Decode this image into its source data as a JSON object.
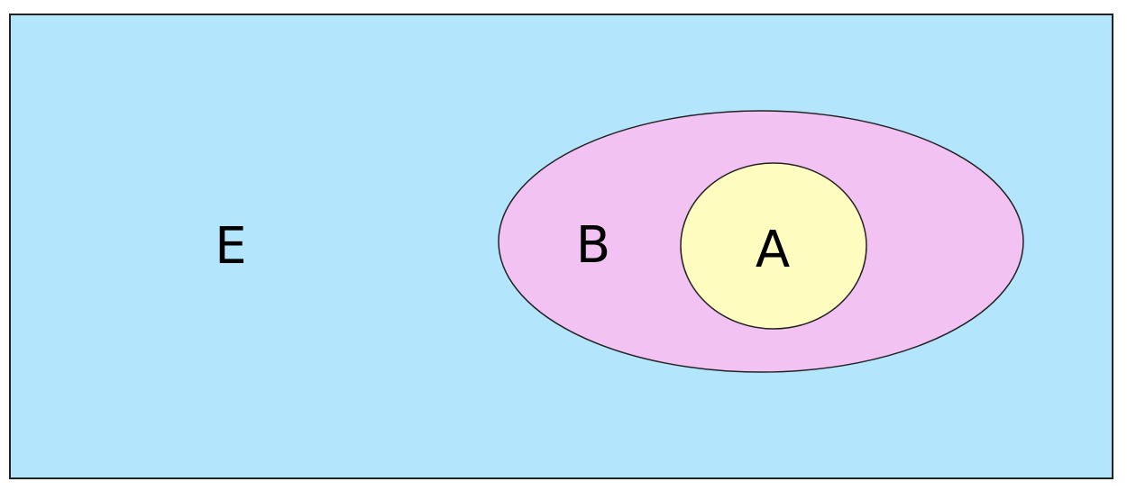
{
  "diagram": {
    "universe": {
      "label": "E",
      "fill": "#b3e5fc"
    },
    "set_b": {
      "label": "B",
      "fill": "#f2c2f2"
    },
    "set_a": {
      "label": "A",
      "fill": "#fffcc0"
    },
    "stroke": "#222222"
  }
}
